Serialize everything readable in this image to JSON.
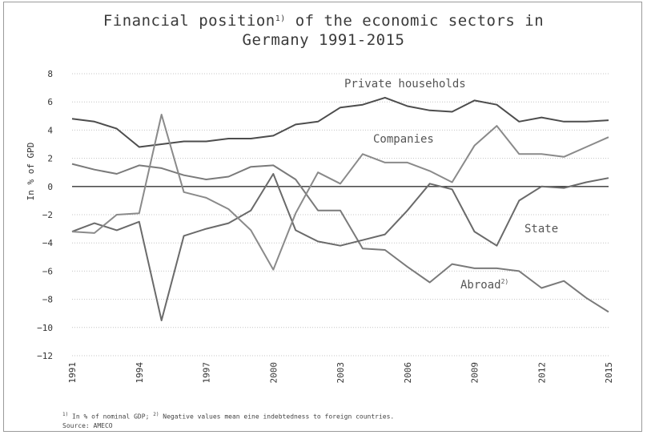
{
  "title": {
    "line1_pre": "Financial position",
    "line1_sup": "1)",
    "line1_post": " of the economic sectors in",
    "line2": "Germany 1991-2015"
  },
  "footnote": {
    "sup1": "1)",
    "text1": " In % of nominal GDP; ",
    "sup2": "2)",
    "text2": " Negative values mean eine indebtedness to foreign countries.",
    "source": "Source: AMECO"
  },
  "colors": {
    "private_households": "#4d4d4d",
    "companies": "#7a7a7a",
    "state": "#6a6a6a",
    "abroad": "#8a8a8a",
    "grid": "#c4c4c4",
    "zero_line": "#333333"
  },
  "chart_data": {
    "type": "line",
    "title": "Financial position1) of the economic sectors in Germany 1991-2015",
    "xlabel": "",
    "ylabel": "In % of GPD",
    "ylim": [
      -12,
      8
    ],
    "yticks": [
      8,
      6,
      4,
      2,
      0,
      -2,
      -4,
      -6,
      -8,
      -10,
      -12
    ],
    "xticks": [
      1991,
      1994,
      1997,
      2000,
      2003,
      2006,
      2009,
      2012,
      2015
    ],
    "x": [
      1991,
      1992,
      1993,
      1994,
      1995,
      1996,
      1997,
      1998,
      1999,
      2000,
      2001,
      2002,
      2003,
      2004,
      2005,
      2006,
      2007,
      2008,
      2009,
      2010,
      2011,
      2012,
      2013,
      2014,
      2015
    ],
    "grid": true,
    "series": [
      {
        "name": "Private households",
        "label_text": "Private households",
        "values": [
          4.8,
          4.6,
          4.1,
          2.8,
          3.0,
          3.2,
          3.2,
          3.4,
          3.4,
          3.6,
          4.4,
          4.6,
          5.6,
          5.8,
          6.3,
          5.7,
          5.4,
          5.3,
          6.1,
          5.8,
          4.6,
          4.9,
          4.6,
          4.6,
          4.7
        ]
      },
      {
        "name": "Companies",
        "label_text": "Companies",
        "values": [
          1.6,
          1.2,
          0.9,
          1.5,
          1.3,
          0.8,
          0.5,
          0.7,
          1.4,
          1.5,
          0.5,
          -1.7,
          -1.7,
          -4.4,
          -4.5,
          -5.7,
          -6.8,
          -5.5,
          -5.8,
          -5.8,
          -6.0,
          -7.2,
          -6.7,
          -7.9,
          -8.9
        ]
      },
      {
        "name": "State",
        "label_text": "State",
        "values": [
          -3.2,
          -2.6,
          -3.1,
          -2.5,
          -9.5,
          -3.5,
          -3.0,
          -2.6,
          -1.7,
          0.9,
          -3.1,
          -3.9,
          -4.2,
          -3.8,
          -3.4,
          -1.7,
          0.2,
          -0.2,
          -3.2,
          -4.2,
          -1.0,
          0.0,
          -0.1,
          0.3,
          0.6
        ]
      },
      {
        "name": "Abroad",
        "label_text": "Abroad",
        "label_sup": "2)",
        "values": [
          -3.2,
          -3.3,
          -2.0,
          -1.9,
          5.1,
          -0.4,
          -0.8,
          -1.6,
          -3.1,
          -5.9,
          -1.9,
          1.0,
          0.2,
          2.3,
          1.7,
          1.7,
          1.1,
          0.3,
          2.9,
          4.3,
          2.3,
          2.3,
          2.1,
          2.8,
          3.5
        ]
      }
    ]
  }
}
